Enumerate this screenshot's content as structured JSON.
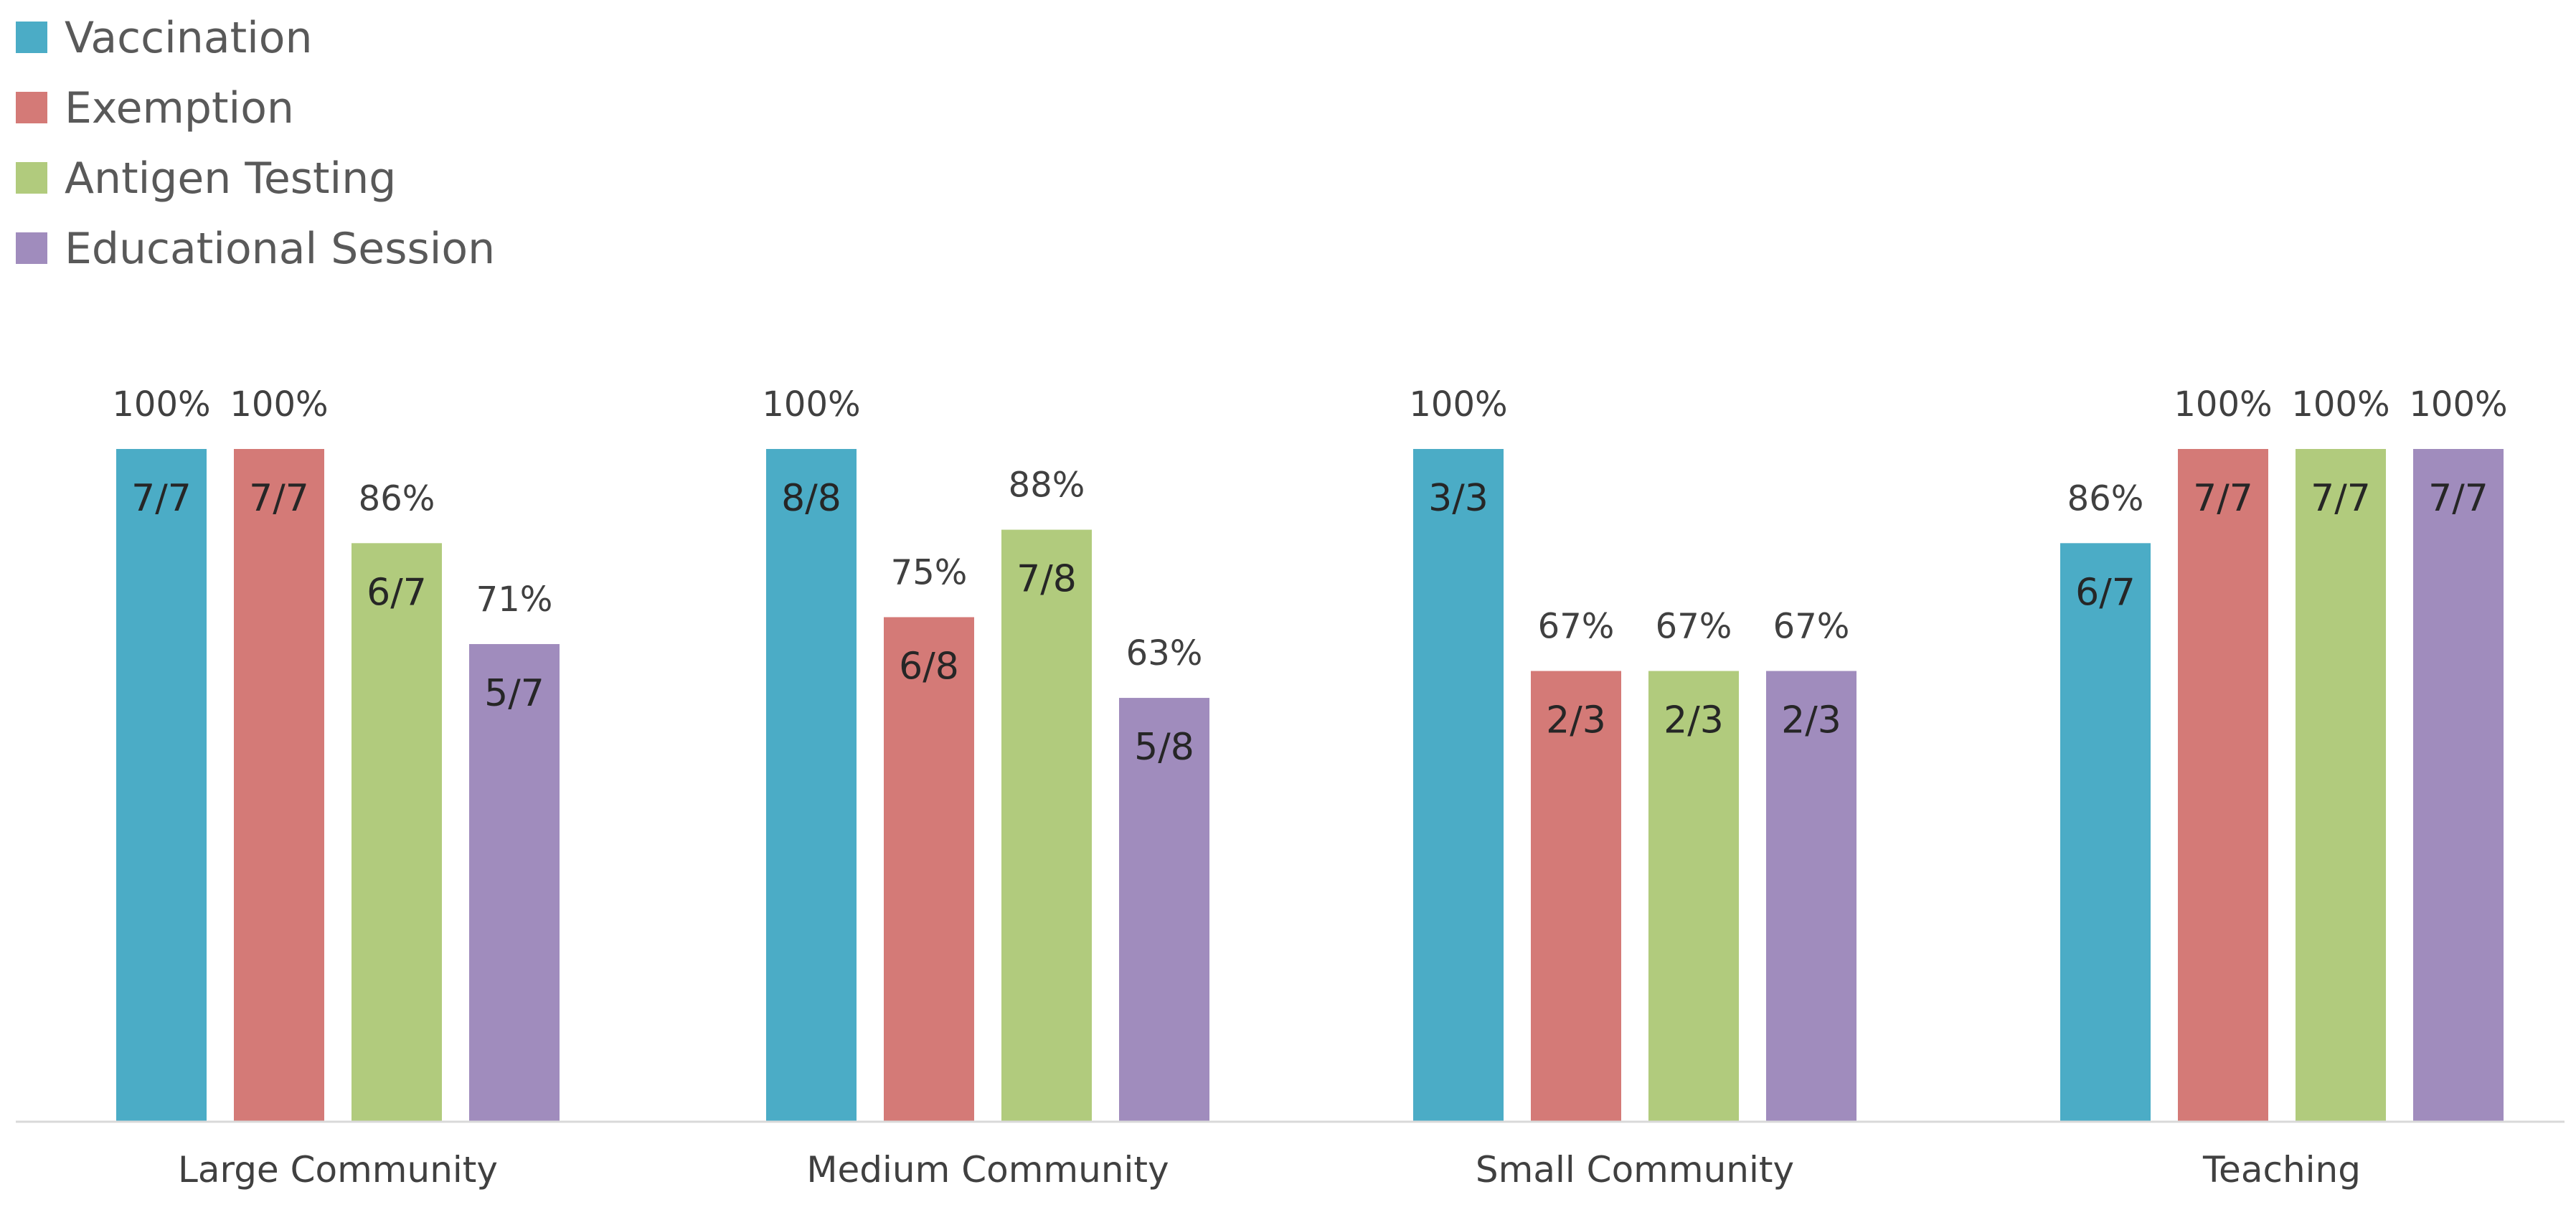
{
  "chart_data": {
    "type": "bar",
    "title": "",
    "xlabel": "",
    "ylabel": "",
    "ylim": [
      0,
      100
    ],
    "grid": false,
    "legend_position": "top-left",
    "categories": [
      "Large Community",
      "Medium Community",
      "Small Community",
      "Teaching"
    ],
    "series": [
      {
        "name": "Vaccination",
        "color": "#4BACC6",
        "values": [
          100,
          100,
          100,
          86
        ],
        "pct_labels": [
          "100%",
          "100%",
          "100%",
          "86%"
        ],
        "count_labels": [
          "7/7",
          "8/8",
          "3/3",
          "6/7"
        ]
      },
      {
        "name": "Exemption",
        "color": "#D47A77",
        "values": [
          100,
          75,
          67,
          100
        ],
        "pct_labels": [
          "100%",
          "75%",
          "67%",
          "100%"
        ],
        "count_labels": [
          "7/7",
          "6/8",
          "2/3",
          "7/7"
        ]
      },
      {
        "name": "Antigen Testing",
        "color": "#B1CB7D",
        "values": [
          86,
          88,
          67,
          100
        ],
        "pct_labels": [
          "86%",
          "88%",
          "67%",
          "100%"
        ],
        "count_labels": [
          "6/7",
          "7/8",
          "2/3",
          "7/7"
        ]
      },
      {
        "name": "Educational Session",
        "color": "#A08CBD",
        "values": [
          71,
          63,
          67,
          100
        ],
        "pct_labels": [
          "71%",
          "63%",
          "67%",
          "100%"
        ],
        "count_labels": [
          "5/7",
          "5/8",
          "2/3",
          "7/7"
        ]
      }
    ]
  }
}
